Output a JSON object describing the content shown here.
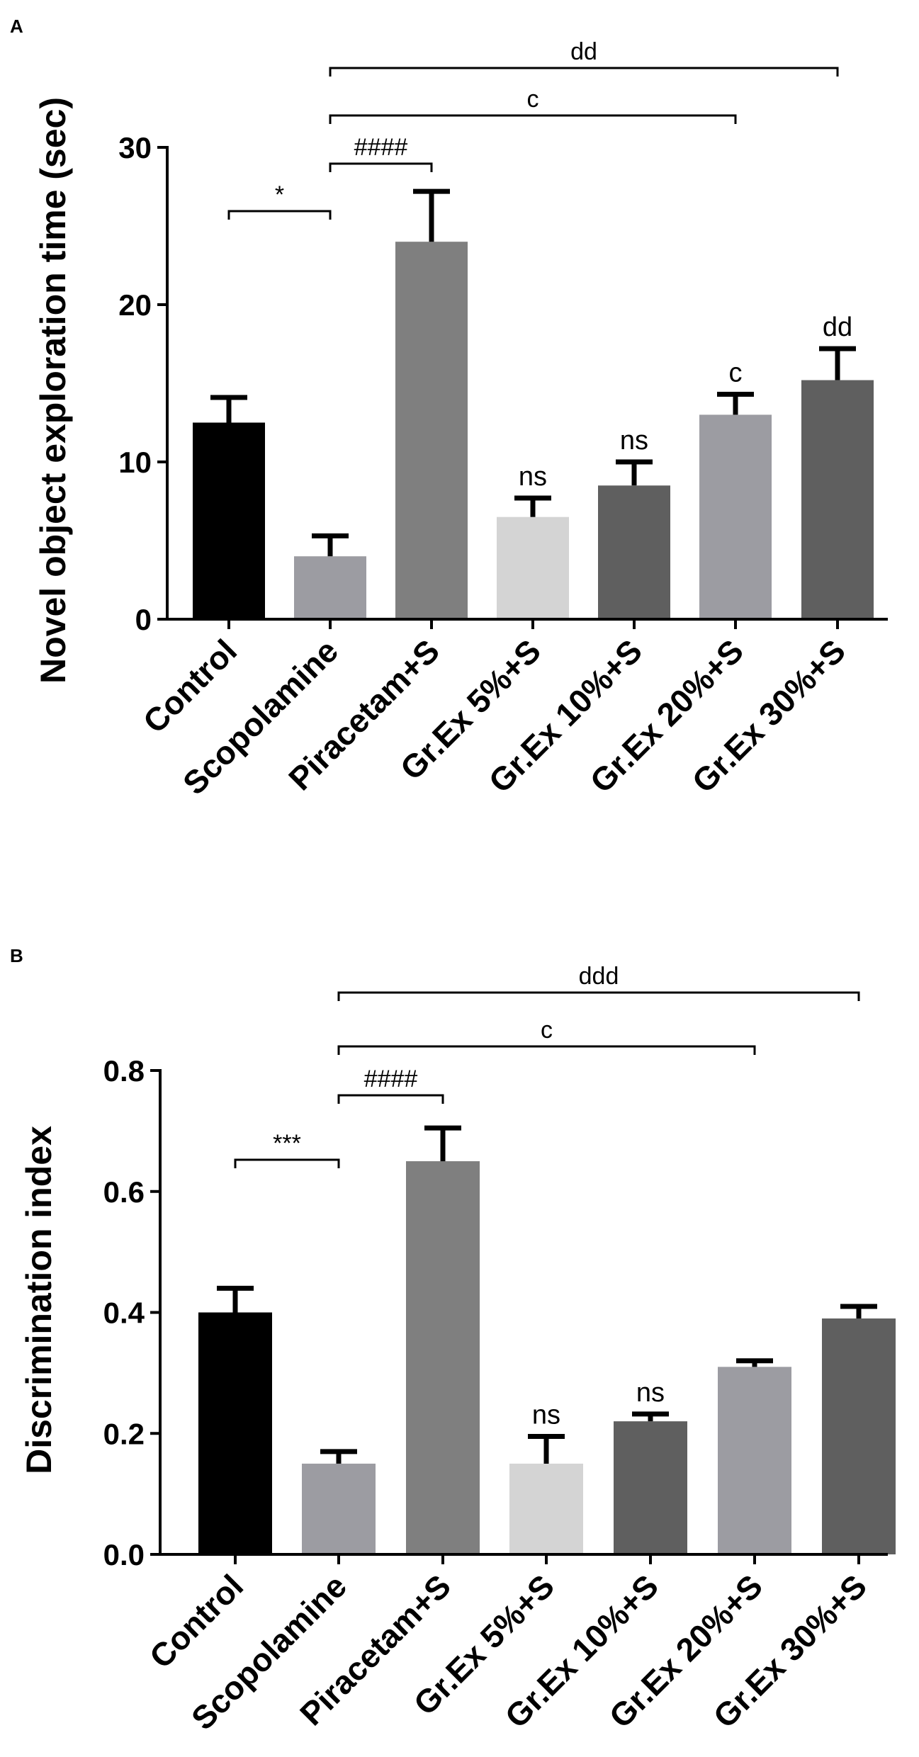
{
  "chart_data": [
    {
      "panel_label": "A",
      "type": "bar",
      "categories": [
        "Control",
        "Scopolamine",
        "Piracetam+S",
        "Gr.Ex 5%+S",
        "Gr.Ex 10%+S",
        "Gr.Ex 20%+S",
        "Gr.Ex 30%+S"
      ],
      "values": [
        12.5,
        4.0,
        24.0,
        6.5,
        8.5,
        13.0,
        15.2
      ],
      "errors": [
        1.6,
        1.3,
        3.2,
        1.2,
        1.5,
        1.3,
        2.0
      ],
      "colors": [
        "#000000",
        "#9c9ca2",
        "#7f7f7f",
        "#d4d4d4",
        "#5f5f5f",
        "#9c9ca2",
        "#5f5f5f"
      ],
      "ylabel": "Novel object exploration time (sec)",
      "xlabel": "",
      "ylim": [
        0,
        30
      ],
      "yticks": [
        "0",
        "10",
        "20",
        "30"
      ],
      "bar_annotations": [
        "",
        "",
        "",
        "ns",
        "ns",
        "c",
        "dd"
      ],
      "brackets": [
        {
          "from": 0,
          "to": 1,
          "label": "*",
          "tier": 0
        },
        {
          "from": 1,
          "to": 2,
          "label": "####",
          "tier": 1
        },
        {
          "from": 1,
          "to": 5,
          "label": "c",
          "tier": 2
        },
        {
          "from": 1,
          "to": 6,
          "label": "dd",
          "tier": 3
        }
      ]
    },
    {
      "panel_label": "B",
      "type": "bar",
      "categories": [
        "Control",
        "Scopolamine",
        "Piracetam+S",
        "Gr.Ex 5%+S",
        "Gr.Ex 10%+S",
        "Gr.Ex 20%+S",
        "Gr.Ex 30%+S"
      ],
      "values": [
        0.4,
        0.15,
        0.65,
        0.15,
        0.22,
        0.31,
        0.39
      ],
      "errors": [
        0.04,
        0.02,
        0.055,
        0.045,
        0.012,
        0.01,
        0.02
      ],
      "colors": [
        "#000000",
        "#9c9ca2",
        "#7f7f7f",
        "#d4d4d4",
        "#5f5f5f",
        "#9c9ca2",
        "#5f5f5f"
      ],
      "ylabel": "Discrimination index",
      "xlabel": "",
      "ylim": [
        0,
        0.8
      ],
      "yticks": [
        "0.0",
        "0.2",
        "0.4",
        "0.6",
        "0.8"
      ],
      "bar_annotations": [
        "",
        "",
        "",
        "ns",
        "ns",
        "",
        ""
      ],
      "brackets": [
        {
          "from": 0,
          "to": 1,
          "label": "***",
          "tier": 0
        },
        {
          "from": 1,
          "to": 2,
          "label": "####",
          "tier": 1
        },
        {
          "from": 1,
          "to": 5,
          "label": "c",
          "tier": 2
        },
        {
          "from": 1,
          "to": 6,
          "label": "ddd",
          "tier": 3
        }
      ]
    }
  ]
}
